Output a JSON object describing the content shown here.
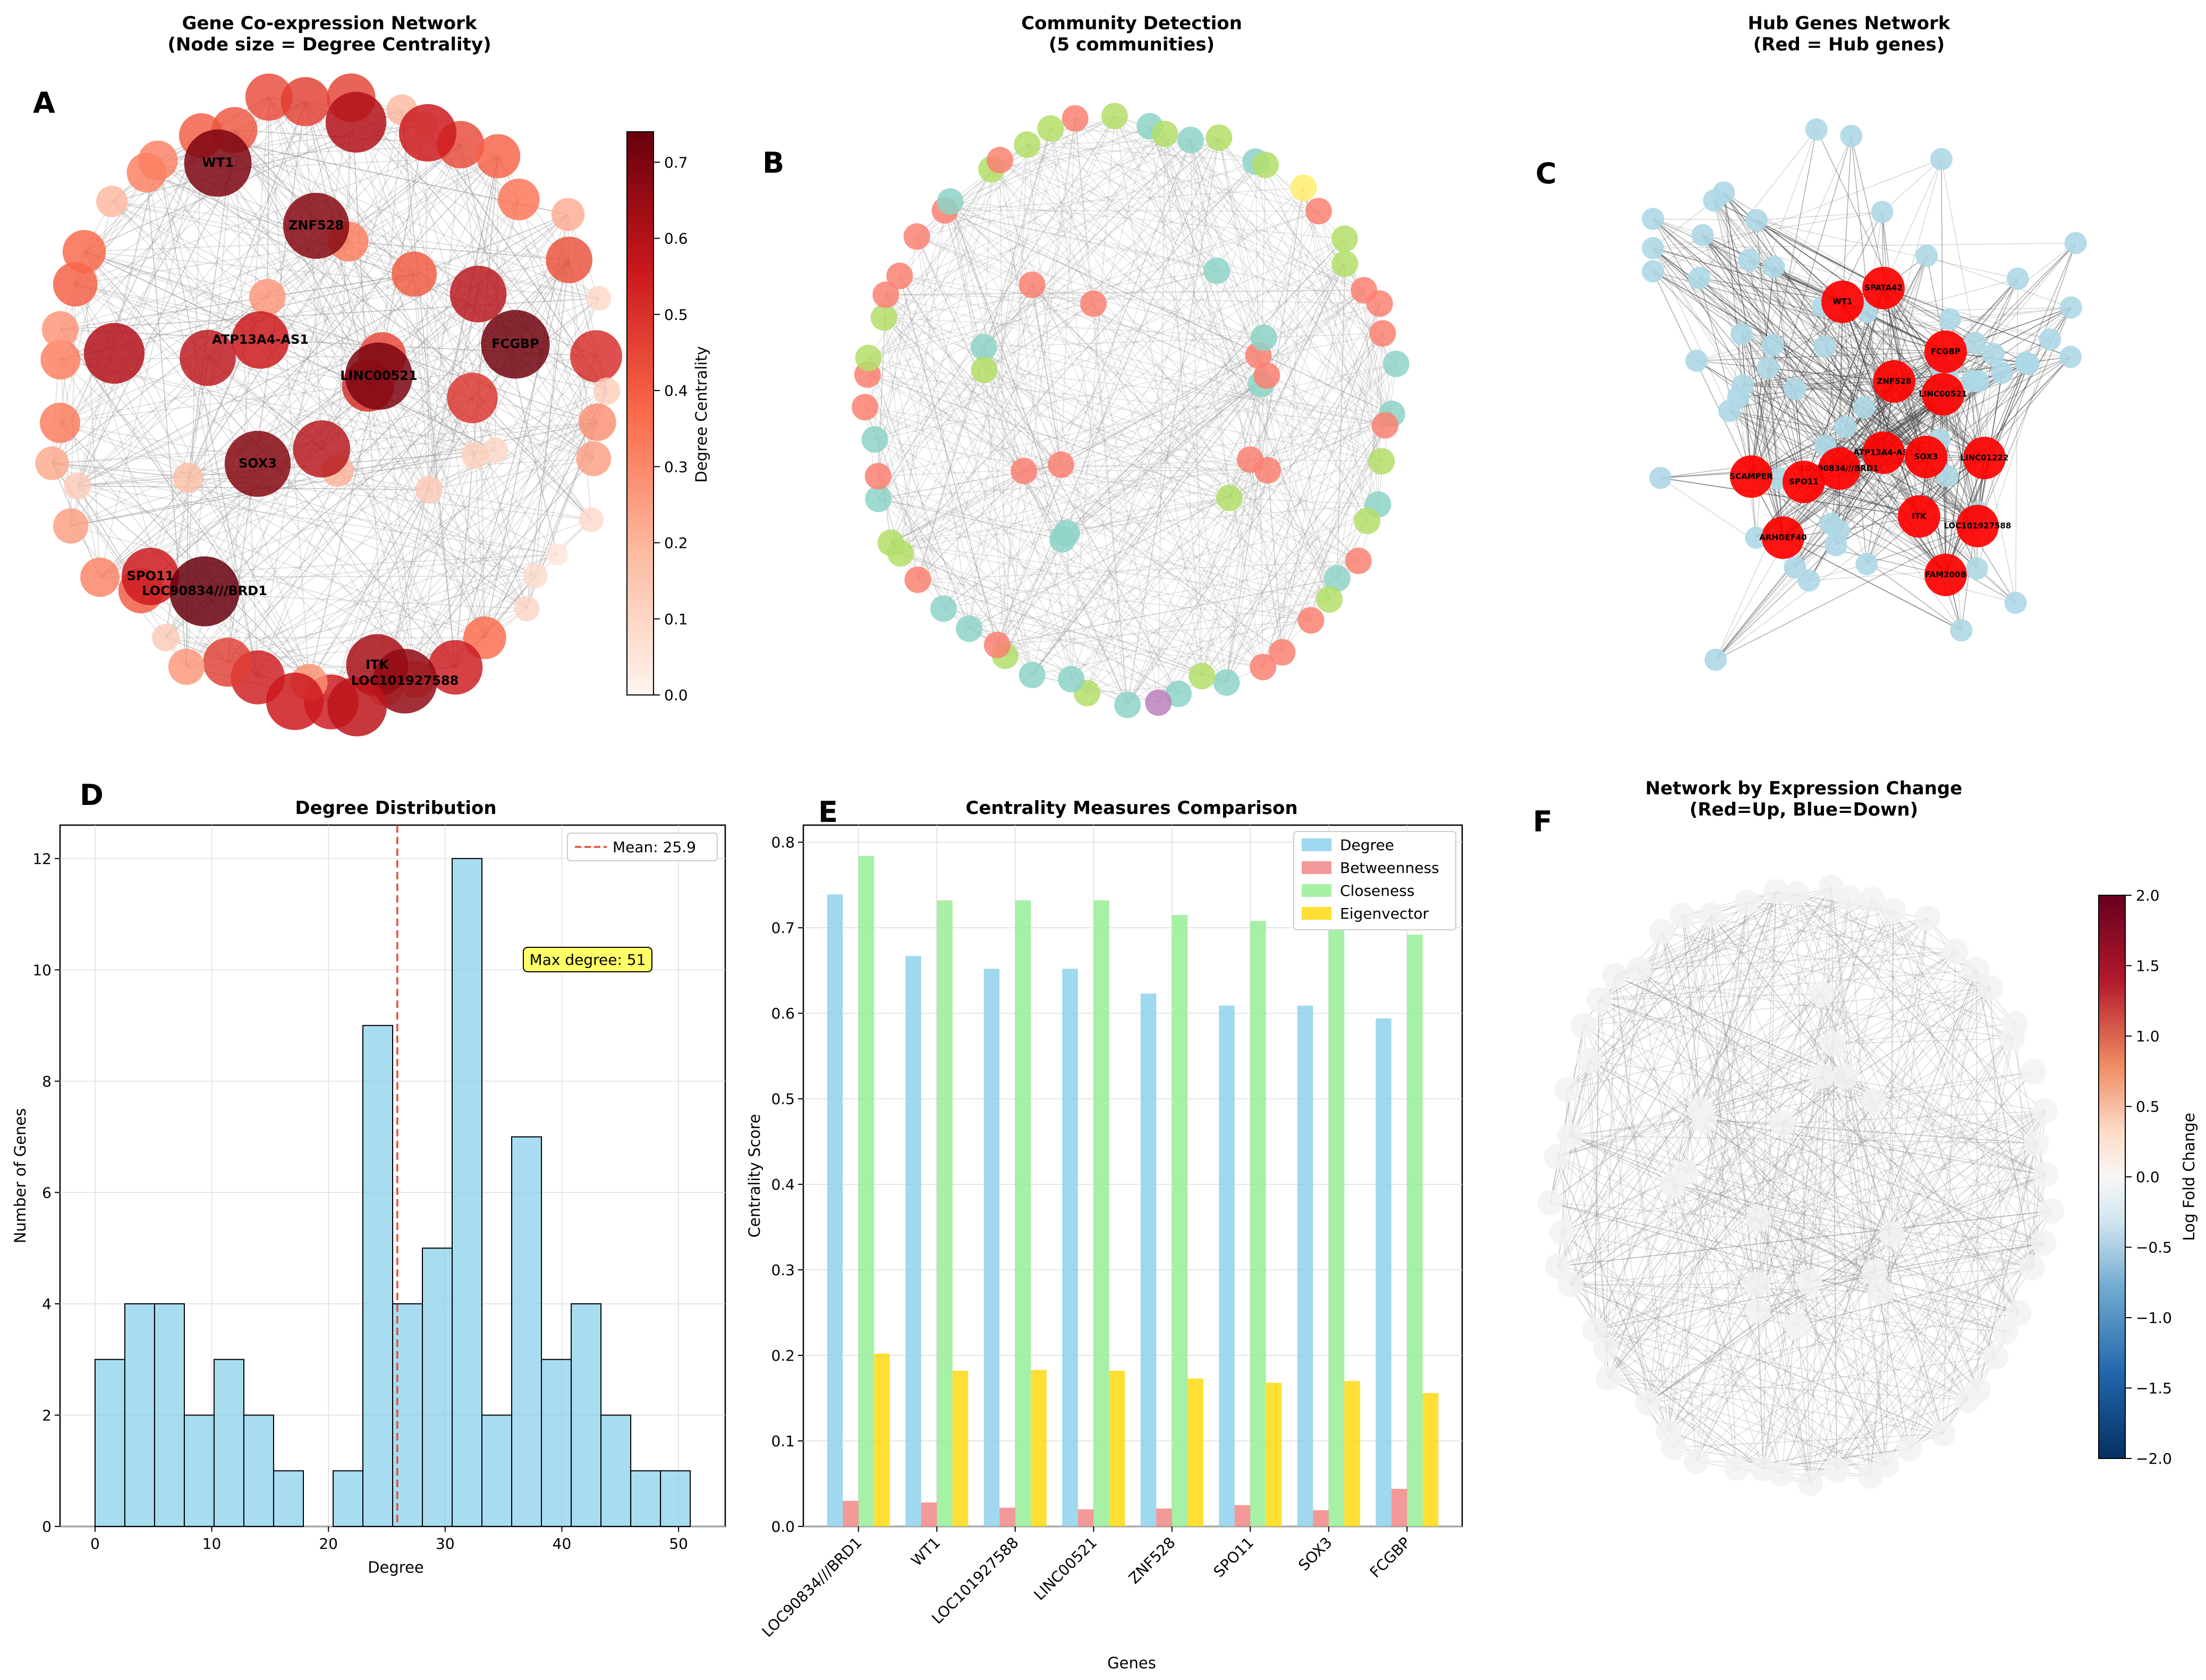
{
  "panels": {
    "A": {
      "label": "A",
      "title": [
        "Gene Co-expression Network",
        "(Node size = Degree Centrality)"
      ],
      "colorbar": {
        "label": "Degree Centrality",
        "ticks": [
          "0.0",
          "0.1",
          "0.2",
          "0.3",
          "0.4",
          "0.5",
          "0.6",
          "0.7"
        ],
        "min": 0.0,
        "max": 0.74
      },
      "labels": [
        "WT1",
        "ZNF528",
        "ATP13A4-AS1",
        "FCGBP",
        "LINC00521",
        "SOX3",
        "SPO11",
        "LOC90834///BRD1",
        "ITK",
        "LOC101927588"
      ]
    },
    "B": {
      "label": "B",
      "title": [
        "Community Detection",
        "(5 communities)"
      ],
      "community_colors": [
        "#8dd3c7",
        "#fb8072",
        "#b3de69",
        "#bc80bd",
        "#ffed6f"
      ]
    },
    "C": {
      "label": "C",
      "title": [
        "Hub Genes Network",
        "(Red = Hub genes)"
      ],
      "hub_color": "#ff0000",
      "node_color": "#add8e6",
      "hub_labels": [
        "WT1",
        "SPATA42",
        "FCGBP",
        "ZNF528",
        "LINC00521",
        "ATP13A4-AS1",
        "SOX3",
        "LINC01222",
        "LOC90834///BRD1",
        "SCAMPER",
        "SPO11",
        "ITK",
        "LOC101927588",
        "ARHGEF40",
        "FAM200B"
      ]
    },
    "F": {
      "label": "F",
      "title": [
        "Network by Expression Change",
        "(Red=Up, Blue=Down)"
      ],
      "colorbar": {
        "label": "Log Fold Change",
        "ticks": [
          "2.0",
          "1.5",
          "1.0",
          "0.5",
          "0.0",
          "−0.5",
          "−1.0",
          "−1.5",
          "−2.0"
        ],
        "min": -2.0,
        "max": 2.0
      }
    }
  },
  "chart_data": [
    {
      "panel": "D",
      "label": "D",
      "type": "bar",
      "title": "Degree Distribution",
      "xlabel": "Degree",
      "ylabel": "Number of Genes",
      "bin_edges": [
        0,
        2.55,
        5.1,
        7.65,
        10.2,
        12.75,
        15.3,
        17.85,
        20.4,
        22.95,
        25.5,
        28.05,
        30.6,
        33.15,
        35.7,
        38.25,
        40.8,
        43.35,
        45.9,
        48.45,
        51
      ],
      "values": [
        3,
        4,
        4,
        2,
        3,
        2,
        1,
        0,
        1,
        9,
        4,
        5,
        12,
        2,
        7,
        3,
        4,
        2,
        1,
        1
      ],
      "xlim": [
        -3,
        54
      ],
      "ylim": [
        0,
        12.6
      ],
      "xticks": [
        "0",
        "10",
        "20",
        "30",
        "40",
        "50"
      ],
      "yticks": [
        "0",
        "2",
        "4",
        "6",
        "8",
        "10",
        "12"
      ],
      "bar_color": "#87ceeb",
      "mean": 25.9,
      "mean_label": "Mean: 25.9",
      "annotation": "Max degree: 51"
    },
    {
      "panel": "E",
      "label": "E",
      "type": "bar",
      "title": "Centrality Measures Comparison",
      "xlabel": "Genes",
      "ylabel": "Centrality Score",
      "categories": [
        "LOC90834///BRD1",
        "WT1",
        "LOC101927588",
        "LINC00521",
        "ZNF528",
        "SPO11",
        "SOX3",
        "FCGBP"
      ],
      "series": [
        {
          "name": "Degree",
          "color": "#87ceeb",
          "values": [
            0.739,
            0.667,
            0.652,
            0.652,
            0.623,
            0.609,
            0.609,
            0.594
          ]
        },
        {
          "name": "Betweenness",
          "color": "#f08080",
          "values": [
            0.03,
            0.028,
            0.022,
            0.02,
            0.021,
            0.025,
            0.019,
            0.044
          ]
        },
        {
          "name": "Closeness",
          "color": "#90ee90",
          "values": [
            0.784,
            0.732,
            0.732,
            0.732,
            0.715,
            0.708,
            0.708,
            0.692
          ]
        },
        {
          "name": "Eigenvector",
          "color": "#ffd700",
          "values": [
            0.202,
            0.182,
            0.183,
            0.182,
            0.173,
            0.168,
            0.17,
            0.156
          ]
        }
      ],
      "ylim": [
        0,
        0.82
      ],
      "yticks": [
        "0.0",
        "0.1",
        "0.2",
        "0.3",
        "0.4",
        "0.5",
        "0.6",
        "0.7",
        "0.8"
      ]
    }
  ]
}
